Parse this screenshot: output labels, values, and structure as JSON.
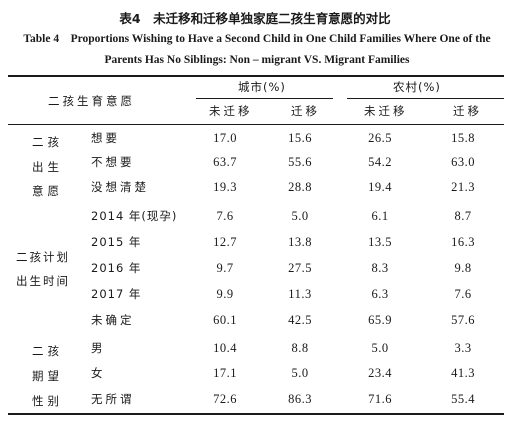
{
  "title_cn": "表4　未迁移和迁移单独家庭二孩生育意愿的对比",
  "title_en_line1": "Table 4　Proportions Wishing to Have a Second Child in One Child Families Where One of the",
  "title_en_line2": "Parents Has No Siblings: Non – migrant VS. Migrant Families",
  "header": {
    "row_label": "二孩生育意愿",
    "urban": "城市(%)",
    "rural": "农村(%)",
    "non_migrant": "未迁移",
    "migrant": "迁移"
  },
  "groups": [
    {
      "line1": "二孩",
      "line2": "出生",
      "line3": "意愿"
    },
    {
      "line1": "二孩计划",
      "line2": "出生时间"
    },
    {
      "line1": "二孩",
      "line2": "期望",
      "line3": "性别"
    }
  ],
  "rows": [
    {
      "label": "想要",
      "v": [
        "17.0",
        "15.6",
        "26.5",
        "15.8"
      ]
    },
    {
      "label": "不想要",
      "v": [
        "63.7",
        "55.6",
        "54.2",
        "63.0"
      ]
    },
    {
      "label": "没想清楚",
      "v": [
        "19.3",
        "28.8",
        "19.4",
        "21.3"
      ]
    },
    {
      "label": "2014 年(现孕)",
      "v": [
        "7.6",
        "5.0",
        "6.1",
        "8.7"
      ]
    },
    {
      "label": "2015 年",
      "v": [
        "12.7",
        "13.8",
        "13.5",
        "16.3"
      ]
    },
    {
      "label": "2016 年",
      "v": [
        "9.7",
        "27.5",
        "8.3",
        "9.8"
      ]
    },
    {
      "label": "2017 年",
      "v": [
        "9.9",
        "11.3",
        "6.3",
        "7.6"
      ]
    },
    {
      "label": "未确定",
      "v": [
        "60.1",
        "42.5",
        "65.9",
        "57.6"
      ]
    },
    {
      "label": "男",
      "v": [
        "10.4",
        "8.8",
        "5.0",
        "3.3"
      ]
    },
    {
      "label": "女",
      "v": [
        "17.1",
        "5.0",
        "23.4",
        "41.3"
      ]
    },
    {
      "label": "无所谓",
      "v": [
        "72.6",
        "86.3",
        "71.6",
        "55.4"
      ]
    }
  ]
}
